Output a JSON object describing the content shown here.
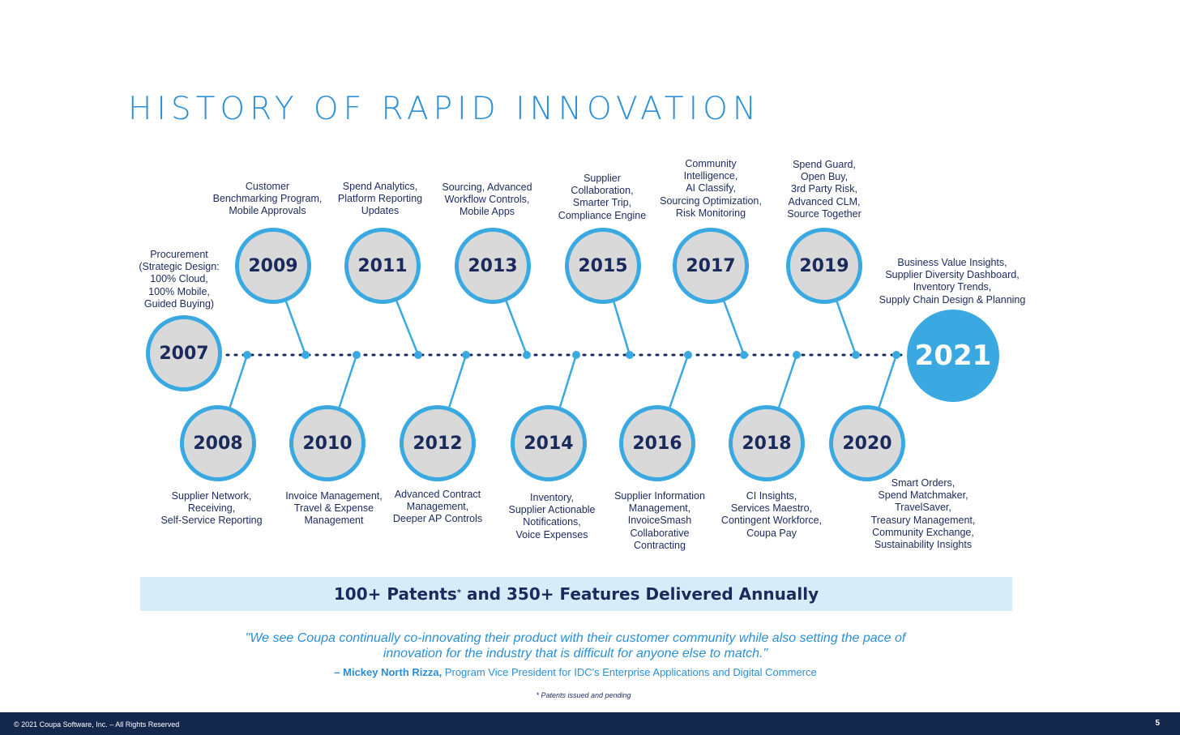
{
  "title": "HISTORY OF RAPID INNOVATION",
  "milestones": [
    {
      "year": "2007",
      "features": "Procurement\n(Strategic Design:\n100% Cloud,\n100% Mobile,\nGuided Buying)"
    },
    {
      "year": "2008",
      "features": "Supplier Network,\nReceiving,\nSelf-Service Reporting"
    },
    {
      "year": "2009",
      "features": "Customer\nBenchmarking Program,\nMobile Approvals"
    },
    {
      "year": "2010",
      "features": "Invoice Management,\nTravel & Expense\nManagement"
    },
    {
      "year": "2011",
      "features": "Spend Analytics,\nPlatform Reporting\nUpdates"
    },
    {
      "year": "2012",
      "features": "Advanced Contract\nManagement,\nDeeper AP Controls"
    },
    {
      "year": "2013",
      "features": "Sourcing, Advanced\nWorkflow Controls,\nMobile Apps"
    },
    {
      "year": "2014",
      "features": "Inventory,\nSupplier Actionable\nNotifications,\nVoice Expenses"
    },
    {
      "year": "2015",
      "features": "Supplier\nCollaboration,\nSmarter Trip,\nCompliance Engine"
    },
    {
      "year": "2016",
      "features": "Supplier Information\nManagement,\nInvoiceSmash\nCollaborative\nContracting"
    },
    {
      "year": "2017",
      "features": "Community\nIntelligence,\nAI Classify,\nSourcing Optimization,\nRisk Monitoring"
    },
    {
      "year": "2018",
      "features": "CI Insights,\nServices Maestro,\nContingent Workforce,\nCoupa Pay"
    },
    {
      "year": "2019",
      "features": "Spend Guard,\nOpen Buy,\n3rd Party Risk,\nAdvanced CLM,\nSource Together"
    },
    {
      "year": "2020",
      "features": "Smart Orders,\nSpend Matchmaker,\nTravelSaver,\nTreasury Management,\nCommunity Exchange,\nSustainability Insights"
    },
    {
      "year": "2021",
      "features": "Business Value Insights,\nSupplier Diversity Dashboard,\nInventory Trends,\nSupply Chain Design & Planning"
    }
  ],
  "banner": {
    "prefix": "100+ Patents",
    "mark": "*",
    "suffix": " and 350+ Features Delivered Annually"
  },
  "quote": "\"We see Coupa continually co-innovating their product with their customer community while also setting the pace of innovation for the industry that is difficult for anyone else to match.\"",
  "attribution": {
    "name": "– Mickey North Rizza,",
    "role": " Program Vice President for IDC's Enterprise Applications and Digital Commerce"
  },
  "footnote": "* Patents issued and pending",
  "footer": {
    "copyright": "© 2021 Coupa Software, Inc. – All Rights Reserved",
    "page": "5"
  },
  "colors": {
    "accent": "#3aa9e1",
    "navy": "#1b2a5c",
    "footer": "#14284d",
    "banner": "#d6ecf8",
    "circle_fill": "#d9d9d9"
  }
}
